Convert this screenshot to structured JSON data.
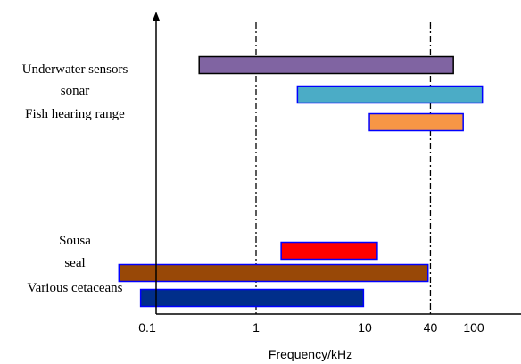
{
  "chart_data": {
    "type": "bar",
    "orientation": "horizontal-range",
    "xscale": "log",
    "xlabel": "Frequency/kHz",
    "xlim": [
      0.02,
      1000
    ],
    "xticks": [
      {
        "value": 0.1,
        "label": "0.1"
      },
      {
        "value": 1,
        "label": "1"
      },
      {
        "value": 10,
        "label": "10"
      },
      {
        "value": 40,
        "label": "40"
      },
      {
        "value": 100,
        "label": "100"
      }
    ],
    "reference_lines": [
      1,
      40
    ],
    "grid": false,
    "legend": "none",
    "categories": [
      "Underwater sensors",
      "sonar",
      "Fish hearing range",
      "Sousa",
      "seal",
      "Various cetaceans"
    ],
    "ranges": [
      {
        "label": "Underwater sensors",
        "low": 0.3,
        "high": 65,
        "fill": "#8064a2",
        "stroke": "#000000"
      },
      {
        "label": "sonar",
        "low": 2.4,
        "high": 120,
        "fill": "#4bacc6",
        "stroke": "#0000ff"
      },
      {
        "label": "Fish hearing range",
        "low": 11,
        "high": 80,
        "fill": "#f79646",
        "stroke": "#0000ff"
      },
      {
        "label": "Sousa",
        "low": 1.7,
        "high": 13,
        "fill": "#ff0000",
        "stroke": "#0000ff"
      },
      {
        "label": "seal",
        "low": 0.055,
        "high": 38,
        "fill": "#984807",
        "stroke": "#0000ff"
      },
      {
        "label": "Various cetaceans",
        "low": 0.087,
        "high": 9.7,
        "fill": "#002e8a",
        "stroke": "#0000ff"
      }
    ]
  }
}
